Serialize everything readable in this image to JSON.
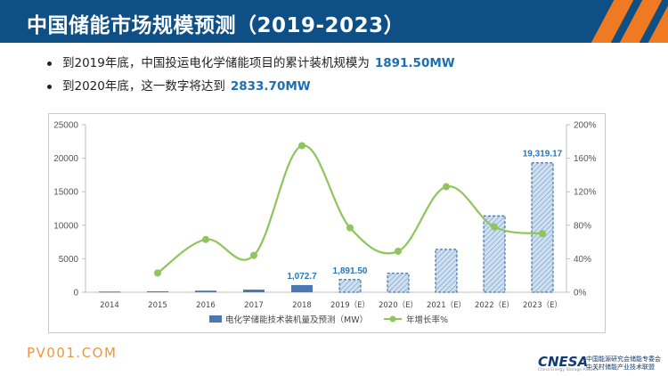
{
  "header": {
    "title": "中国储能市场规模预测（2019-2023）",
    "accent_color": "#f07a22",
    "background_color": "#0e4f86"
  },
  "bullets": [
    {
      "text": "到2019年底，中国投运电化学储能项目的累计装机规模为",
      "highlight": "1891.50MW"
    },
    {
      "text": "到2020年底，这一数字将达到",
      "highlight": "2833.70MW"
    }
  ],
  "watermark": "PV001.COM",
  "logo": {
    "name": "CNESA",
    "subtitle": "China Energy Storage Alliance",
    "line1": "中国能源研究会储能专委会",
    "line2": "中关村储能产业技术联盟"
  },
  "chart_data": {
    "type": "bar",
    "categories": [
      "2014",
      "2015",
      "2016",
      "2017",
      "2018",
      "2019（E）",
      "2020（E）",
      "2021（E）",
      "2022（E）",
      "2023（E）"
    ],
    "series": [
      {
        "name": "电化学储能技术装机量及预测（MW）",
        "type": "bar",
        "axis": "left",
        "values": [
          100,
          140,
          240,
          390,
          1072.7,
          1891.5,
          2833.7,
          6400,
          11400,
          19319.17
        ],
        "estimated": [
          false,
          false,
          false,
          false,
          false,
          true,
          true,
          true,
          true,
          true
        ]
      },
      {
        "name": "年增长率%",
        "type": "line",
        "axis": "right",
        "values": [
          null,
          23,
          63,
          44,
          175,
          77,
          49,
          126,
          78,
          70
        ]
      }
    ],
    "data_labels": [
      {
        "index": 4,
        "text": "1,072.7"
      },
      {
        "index": 5,
        "text": "1,891.50"
      },
      {
        "index": 9,
        "text": "19,319.17"
      }
    ],
    "y_left": {
      "min": 0,
      "max": 25000,
      "ticks": [
        "0",
        "5000",
        "10000",
        "15000",
        "20000",
        "25000"
      ]
    },
    "y_right": {
      "min": 0,
      "max": 200,
      "ticks": [
        "0%",
        "40%",
        "80%",
        "120%",
        "160%",
        "200%"
      ]
    },
    "grid": false,
    "legend_position": "bottom",
    "colors": {
      "bar": "#4a78b5",
      "bar_estimated_fill": "#cfe0f1",
      "bar_estimated_stroke": "#2c5b94",
      "line": "#8fc55a",
      "label": "#2579b8"
    }
  }
}
